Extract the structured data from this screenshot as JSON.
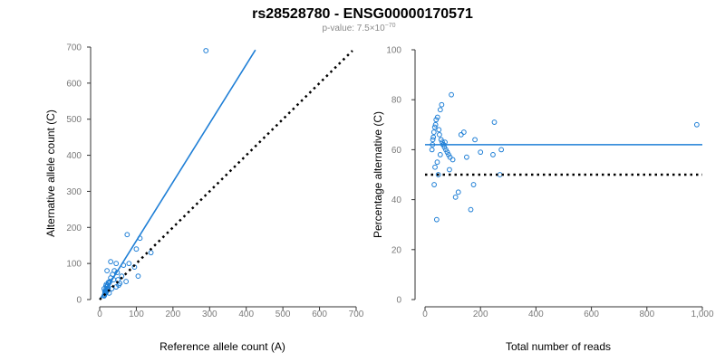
{
  "header": {
    "title": "rs28528780 - ENSG00000170571",
    "pvalue_prefix": "p-value: 7.5×10",
    "pvalue_exponent": "−70"
  },
  "chart_data": [
    {
      "type": "scatter",
      "xlabel": "Reference allele count (A)",
      "ylabel": "Alternative allele count (C)",
      "xlim": [
        0,
        700
      ],
      "ylim": [
        0,
        700
      ],
      "xticks": [
        0,
        100,
        200,
        300,
        400,
        500,
        600,
        700
      ],
      "yticks": [
        0,
        100,
        200,
        300,
        400,
        500,
        600,
        700
      ],
      "xtick_labels": [
        "0",
        "100",
        "200",
        "300",
        "400",
        "500",
        "600",
        "700"
      ],
      "ytick_labels": [
        "0",
        "100",
        "200",
        "300",
        "400",
        "500",
        "600",
        "700"
      ],
      "grid": false,
      "series": [
        {
          "kind": "points",
          "color": "#1f7fd6",
          "x": [
            290,
            15,
            18,
            12,
            20,
            22,
            25,
            14,
            16,
            19,
            21,
            23,
            17,
            13,
            28,
            30,
            35,
            40,
            45,
            50,
            55,
            60,
            72,
            75,
            95,
            100,
            105,
            110,
            140,
            45,
            20,
            30,
            12,
            14,
            16,
            18,
            24,
            26,
            33,
            38,
            48,
            52,
            65,
            80
          ],
          "y": [
            690,
            20,
            25,
            30,
            35,
            40,
            45,
            15,
            18,
            22,
            28,
            32,
            38,
            12,
            50,
            60,
            70,
            80,
            100,
            55,
            45,
            65,
            50,
            180,
            90,
            140,
            65,
            170,
            130,
            35,
            80,
            105,
            10,
            22,
            27,
            42,
            48,
            18,
            30,
            55,
            75,
            40,
            95,
            100
          ]
        },
        {
          "kind": "fit-line",
          "color": "#1f7fd6",
          "x": [
            0,
            425
          ],
          "y": [
            0,
            692
          ]
        },
        {
          "kind": "reference-line",
          "color": "#000000",
          "style": "dotted",
          "x": [
            0,
            690
          ],
          "y": [
            0,
            690
          ]
        }
      ]
    },
    {
      "type": "scatter",
      "xlabel": "Total number of reads",
      "ylabel": "Percentage alternative (C)",
      "xlim": [
        0,
        1000
      ],
      "ylim": [
        0,
        100
      ],
      "xticks": [
        0,
        200,
        400,
        600,
        800,
        1000
      ],
      "yticks": [
        0,
        20,
        40,
        60,
        80,
        100
      ],
      "xtick_labels": [
        "0",
        "200",
        "400",
        "600",
        "800",
        "1,000"
      ],
      "ytick_labels": [
        "0",
        "20",
        "40",
        "60",
        "80",
        "100"
      ],
      "grid": false,
      "series": [
        {
          "kind": "points",
          "color": "#1f7fd6",
          "x": [
            980,
            95,
            60,
            55,
            45,
            40,
            38,
            35,
            32,
            30,
            28,
            27,
            25,
            50,
            52,
            58,
            62,
            65,
            70,
            75,
            80,
            85,
            90,
            100,
            110,
            120,
            130,
            140,
            150,
            165,
            175,
            245,
            250,
            270,
            275,
            180,
            200,
            42,
            48,
            33,
            36,
            44,
            55,
            67,
            72,
            88
          ],
          "y": [
            70,
            82,
            78,
            76,
            73,
            72,
            70,
            69,
            67,
            65,
            64,
            62,
            60,
            68,
            66,
            64,
            63,
            62,
            61,
            60,
            59,
            58,
            57,
            56,
            41,
            43,
            66,
            67,
            57,
            36,
            46,
            58,
            71,
            50,
            60,
            64,
            59,
            32,
            50,
            46,
            53,
            55,
            58,
            62,
            63,
            52
          ]
        },
        {
          "kind": "fit-line",
          "color": "#1f7fd6",
          "x": [
            0,
            1000
          ],
          "y": [
            62,
            62
          ]
        },
        {
          "kind": "reference-line",
          "color": "#000000",
          "style": "dotted",
          "x": [
            0,
            1000
          ],
          "y": [
            50,
            50
          ]
        }
      ]
    }
  ]
}
